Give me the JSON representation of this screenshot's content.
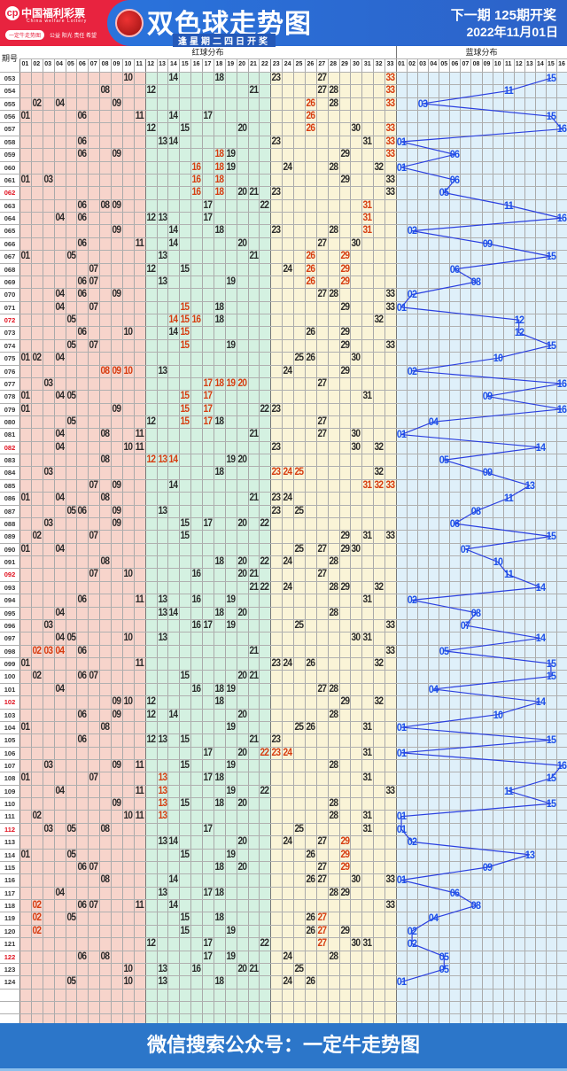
{
  "header": {
    "logo_cn": "中国福利彩票",
    "logo_en": "China welfare Lottery",
    "logo_mark": "cp",
    "pill": "一定牛走势图",
    "slogan": "公益 阳光 责任 希望",
    "title": "双色球走势图",
    "subtitle": "逢星期二四日开奖",
    "next_draw": "下一期 125期开奖",
    "next_date": "2022年11月01日"
  },
  "table": {
    "issue_header": "期号",
    "red_header": "红球分布",
    "blue_header": "蓝球分布",
    "red_count": 33,
    "blue_count": 16,
    "colors": {
      "red_zone_1": "#f7d4cb",
      "red_zone_2": "#d4f1e1",
      "red_zone_3": "#faf4d7",
      "blue_zone": "#dff0fa",
      "hot_number": "#d63c10",
      "blue_number": "#1e50e8",
      "issue_highlight": "#e0101e"
    },
    "empty_rows": 3,
    "rows": [
      {
        "issue": "053",
        "red": [
          "10",
          "14",
          "18",
          "23",
          "27",
          "33"
        ],
        "hot": [
          "33"
        ],
        "blue": "15"
      },
      {
        "issue": "054",
        "red": [
          "08",
          "12",
          "21",
          "27",
          "28",
          "33"
        ],
        "hot": [
          "33"
        ],
        "blue": "11"
      },
      {
        "issue": "055",
        "red": [
          "02",
          "04",
          "09",
          "26",
          "28",
          "33"
        ],
        "hot": [
          "26",
          "33"
        ],
        "blue": "03"
      },
      {
        "issue": "056",
        "red": [
          "01",
          "06",
          "11",
          "14",
          "17",
          "26"
        ],
        "hot": [
          "26"
        ],
        "blue": "15"
      },
      {
        "issue": "057",
        "red": [
          "12",
          "15",
          "20",
          "26",
          "30",
          "33"
        ],
        "hot": [
          "26",
          "33"
        ],
        "blue": "16"
      },
      {
        "issue": "058",
        "red": [
          "06",
          "13",
          "14",
          "23",
          "31",
          "33"
        ],
        "hot": [
          "33"
        ],
        "blue": "01"
      },
      {
        "issue": "059",
        "red": [
          "06",
          "09",
          "18",
          "19",
          "29",
          "33"
        ],
        "hot": [
          "18",
          "33"
        ],
        "blue": "06"
      },
      {
        "issue": "060",
        "red": [
          "16",
          "18",
          "19",
          "24",
          "28",
          "32"
        ],
        "hot": [
          "16",
          "18"
        ],
        "blue": "01"
      },
      {
        "issue": "061",
        "red": [
          "01",
          "03",
          "16",
          "18",
          "29",
          "33"
        ],
        "hot": [
          "16",
          "18"
        ],
        "blue": "06"
      },
      {
        "issue": "062",
        "red": [
          "16",
          "18",
          "20",
          "21",
          "23",
          "33"
        ],
        "hot": [
          "16",
          "18"
        ],
        "blue": "05",
        "highlight": true
      },
      {
        "issue": "063",
        "red": [
          "06",
          "08",
          "09",
          "17",
          "22",
          "31"
        ],
        "hot": [
          "31"
        ],
        "blue": "11"
      },
      {
        "issue": "064",
        "red": [
          "04",
          "06",
          "12",
          "13",
          "17",
          "31"
        ],
        "hot": [
          "31"
        ],
        "blue": "16"
      },
      {
        "issue": "065",
        "red": [
          "09",
          "14",
          "18",
          "23",
          "28",
          "31"
        ],
        "hot": [
          "31"
        ],
        "blue": "02"
      },
      {
        "issue": "066",
        "red": [
          "06",
          "11",
          "14",
          "20",
          "27",
          "30"
        ],
        "hot": [],
        "blue": "09"
      },
      {
        "issue": "067",
        "red": [
          "01",
          "05",
          "13",
          "21",
          "26",
          "29"
        ],
        "hot": [
          "26",
          "29"
        ],
        "blue": "15"
      },
      {
        "issue": "068",
        "red": [
          "07",
          "12",
          "15",
          "24",
          "26",
          "29"
        ],
        "hot": [
          "26",
          "29"
        ],
        "blue": "06"
      },
      {
        "issue": "069",
        "red": [
          "06",
          "07",
          "13",
          "19",
          "26",
          "29"
        ],
        "hot": [
          "26",
          "29"
        ],
        "blue": "08"
      },
      {
        "issue": "070",
        "red": [
          "04",
          "06",
          "09",
          "27",
          "28",
          "33"
        ],
        "hot": [],
        "blue": "02"
      },
      {
        "issue": "071",
        "red": [
          "04",
          "07",
          "15",
          "18",
          "29",
          "33"
        ],
        "hot": [
          "15"
        ],
        "blue": "01"
      },
      {
        "issue": "072",
        "red": [
          "05",
          "14",
          "15",
          "16",
          "18",
          "32"
        ],
        "hot": [
          "14",
          "15",
          "16"
        ],
        "blue": "12",
        "highlight": true
      },
      {
        "issue": "073",
        "red": [
          "06",
          "10",
          "14",
          "15",
          "26",
          "29"
        ],
        "hot": [
          "15"
        ],
        "blue": "12"
      },
      {
        "issue": "074",
        "red": [
          "05",
          "07",
          "15",
          "19",
          "29",
          "33"
        ],
        "hot": [
          "15"
        ],
        "blue": "15"
      },
      {
        "issue": "075",
        "red": [
          "01",
          "02",
          "04",
          "25",
          "26",
          "30"
        ],
        "hot": [],
        "blue": "10"
      },
      {
        "issue": "076",
        "red": [
          "08",
          "09",
          "10",
          "13",
          "24",
          "29"
        ],
        "hot": [
          "08",
          "09",
          "10"
        ],
        "blue": "02"
      },
      {
        "issue": "077",
        "red": [
          "03",
          "17",
          "18",
          "19",
          "20",
          "27"
        ],
        "hot": [
          "17",
          "18",
          "19",
          "20"
        ],
        "blue": "16"
      },
      {
        "issue": "078",
        "red": [
          "01",
          "04",
          "05",
          "15",
          "17",
          "31"
        ],
        "hot": [
          "15",
          "17"
        ],
        "blue": "09"
      },
      {
        "issue": "079",
        "red": [
          "01",
          "09",
          "15",
          "17",
          "22",
          "23"
        ],
        "hot": [
          "15",
          "17"
        ],
        "blue": "16"
      },
      {
        "issue": "080",
        "red": [
          "05",
          "12",
          "15",
          "17",
          "18",
          "27"
        ],
        "hot": [
          "15",
          "17"
        ],
        "blue": "04"
      },
      {
        "issue": "081",
        "red": [
          "04",
          "08",
          "11",
          "21",
          "27",
          "30"
        ],
        "hot": [],
        "blue": "01"
      },
      {
        "issue": "082",
        "red": [
          "04",
          "10",
          "11",
          "23",
          "30",
          "32"
        ],
        "hot": [],
        "blue": "14",
        "highlight": true
      },
      {
        "issue": "083",
        "red": [
          "08",
          "12",
          "13",
          "14",
          "19",
          "20"
        ],
        "hot": [
          "12",
          "13",
          "14"
        ],
        "blue": "05"
      },
      {
        "issue": "084",
        "red": [
          "03",
          "18",
          "23",
          "24",
          "25",
          "32"
        ],
        "hot": [
          "23",
          "24",
          "25"
        ],
        "blue": "09"
      },
      {
        "issue": "085",
        "red": [
          "07",
          "09",
          "14",
          "31",
          "32",
          "33"
        ],
        "hot": [
          "31",
          "32",
          "33"
        ],
        "blue": "13"
      },
      {
        "issue": "086",
        "red": [
          "01",
          "04",
          "08",
          "21",
          "23",
          "24"
        ],
        "hot": [],
        "blue": "11"
      },
      {
        "issue": "087",
        "red": [
          "05",
          "06",
          "09",
          "13",
          "23",
          "25"
        ],
        "hot": [],
        "blue": "08"
      },
      {
        "issue": "088",
        "red": [
          "03",
          "09",
          "15",
          "17",
          "20",
          "22"
        ],
        "hot": [],
        "blue": "06"
      },
      {
        "issue": "089",
        "red": [
          "02",
          "07",
          "15",
          "29",
          "31",
          "33"
        ],
        "hot": [],
        "blue": "15"
      },
      {
        "issue": "090",
        "red": [
          "01",
          "04",
          "25",
          "27",
          "29",
          "30"
        ],
        "hot": [],
        "blue": "07"
      },
      {
        "issue": "091",
        "red": [
          "08",
          "18",
          "20",
          "22",
          "24",
          "28"
        ],
        "hot": [],
        "blue": "10"
      },
      {
        "issue": "092",
        "red": [
          "07",
          "10",
          "16",
          "20",
          "21",
          "27"
        ],
        "hot": [],
        "blue": "11",
        "highlight": true
      },
      {
        "issue": "093",
        "red": [
          "21",
          "22",
          "24",
          "28",
          "29",
          "32"
        ],
        "hot": [],
        "blue": "14"
      },
      {
        "issue": "094",
        "red": [
          "06",
          "11",
          "13",
          "16",
          "19",
          "31"
        ],
        "hot": [],
        "blue": "02"
      },
      {
        "issue": "095",
        "red": [
          "04",
          "13",
          "14",
          "18",
          "20",
          "28"
        ],
        "hot": [],
        "blue": "08"
      },
      {
        "issue": "096",
        "red": [
          "03",
          "16",
          "17",
          "19",
          "25",
          "33"
        ],
        "hot": [],
        "blue": "07"
      },
      {
        "issue": "097",
        "red": [
          "04",
          "05",
          "10",
          "13",
          "30",
          "31"
        ],
        "hot": [],
        "blue": "14"
      },
      {
        "issue": "098",
        "red": [
          "02",
          "03",
          "04",
          "06",
          "21",
          "33"
        ],
        "hot": [
          "02",
          "03",
          "04"
        ],
        "blue": "05"
      },
      {
        "issue": "099",
        "red": [
          "01",
          "11",
          "23",
          "24",
          "26",
          "32"
        ],
        "hot": [],
        "blue": "15"
      },
      {
        "issue": "100",
        "red": [
          "02",
          "06",
          "07",
          "15",
          "20",
          "21"
        ],
        "hot": [],
        "blue": "15"
      },
      {
        "issue": "101",
        "red": [
          "04",
          "16",
          "18",
          "19",
          "27",
          "28"
        ],
        "hot": [],
        "blue": "04"
      },
      {
        "issue": "102",
        "red": [
          "09",
          "10",
          "12",
          "18",
          "29",
          "32"
        ],
        "hot": [],
        "blue": "14",
        "highlight": true
      },
      {
        "issue": "103",
        "red": [
          "06",
          "09",
          "12",
          "14",
          "20",
          "28"
        ],
        "hot": [],
        "blue": "10"
      },
      {
        "issue": "104",
        "red": [
          "01",
          "08",
          "19",
          "25",
          "26",
          "31"
        ],
        "hot": [],
        "blue": "01"
      },
      {
        "issue": "105",
        "red": [
          "06",
          "12",
          "13",
          "15",
          "21",
          "23"
        ],
        "hot": [],
        "blue": "15"
      },
      {
        "issue": "106",
        "red": [
          "17",
          "20",
          "22",
          "23",
          "24",
          "31"
        ],
        "hot": [
          "22",
          "23",
          "24"
        ],
        "blue": "01"
      },
      {
        "issue": "107",
        "red": [
          "03",
          "09",
          "11",
          "15",
          "19",
          "28"
        ],
        "hot": [],
        "blue": "16"
      },
      {
        "issue": "108",
        "red": [
          "01",
          "07",
          "13",
          "17",
          "18",
          "31"
        ],
        "hot": [
          "13"
        ],
        "blue": "15"
      },
      {
        "issue": "109",
        "red": [
          "04",
          "11",
          "13",
          "19",
          "22",
          "33"
        ],
        "hot": [
          "13"
        ],
        "blue": "11"
      },
      {
        "issue": "110",
        "red": [
          "09",
          "13",
          "15",
          "18",
          "20",
          "28"
        ],
        "hot": [
          "13"
        ],
        "blue": "15"
      },
      {
        "issue": "111",
        "red": [
          "02",
          "10",
          "11",
          "13",
          "28",
          "31"
        ],
        "hot": [
          "13"
        ],
        "blue": "01"
      },
      {
        "issue": "112",
        "red": [
          "03",
          "05",
          "08",
          "17",
          "25",
          "31"
        ],
        "hot": [],
        "blue": "01",
        "highlight": true
      },
      {
        "issue": "113",
        "red": [
          "13",
          "14",
          "20",
          "24",
          "27",
          "29"
        ],
        "hot": [
          "29"
        ],
        "blue": "02"
      },
      {
        "issue": "114",
        "red": [
          "01",
          "05",
          "15",
          "19",
          "26",
          "29"
        ],
        "hot": [
          "29"
        ],
        "blue": "13"
      },
      {
        "issue": "115",
        "red": [
          "06",
          "07",
          "18",
          "20",
          "27",
          "29"
        ],
        "hot": [
          "29"
        ],
        "blue": "09"
      },
      {
        "issue": "116",
        "red": [
          "08",
          "14",
          "26",
          "27",
          "30",
          "33"
        ],
        "hot": [],
        "blue": "01"
      },
      {
        "issue": "117",
        "red": [
          "04",
          "13",
          "17",
          "18",
          "28",
          "29"
        ],
        "hot": [],
        "blue": "06"
      },
      {
        "issue": "118",
        "red": [
          "02",
          "06",
          "07",
          "11",
          "14",
          "33"
        ],
        "hot": [
          "02"
        ],
        "blue": "08"
      },
      {
        "issue": "119",
        "red": [
          "02",
          "05",
          "15",
          "18",
          "26",
          "27"
        ],
        "hot": [
          "02",
          "27"
        ],
        "blue": "04"
      },
      {
        "issue": "120",
        "red": [
          "02",
          "15",
          "19",
          "26",
          "27",
          "29"
        ],
        "hot": [
          "02",
          "27"
        ],
        "blue": "02"
      },
      {
        "issue": "121",
        "red": [
          "12",
          "17",
          "22",
          "27",
          "30",
          "31"
        ],
        "hot": [
          "27"
        ],
        "blue": "02"
      },
      {
        "issue": "122",
        "red": [
          "06",
          "08",
          "17",
          "19",
          "24",
          "28"
        ],
        "hot": [],
        "blue": "05",
        "highlight": true
      },
      {
        "issue": "123",
        "red": [
          "10",
          "13",
          "16",
          "20",
          "21",
          "25"
        ],
        "hot": [],
        "blue": "05"
      },
      {
        "issue": "124",
        "red": [
          "05",
          "10",
          "13",
          "18",
          "24",
          "26"
        ],
        "hot": [],
        "blue": "01"
      }
    ]
  },
  "footer": {
    "text": "微信搜索公众号：一定牛走势图"
  }
}
